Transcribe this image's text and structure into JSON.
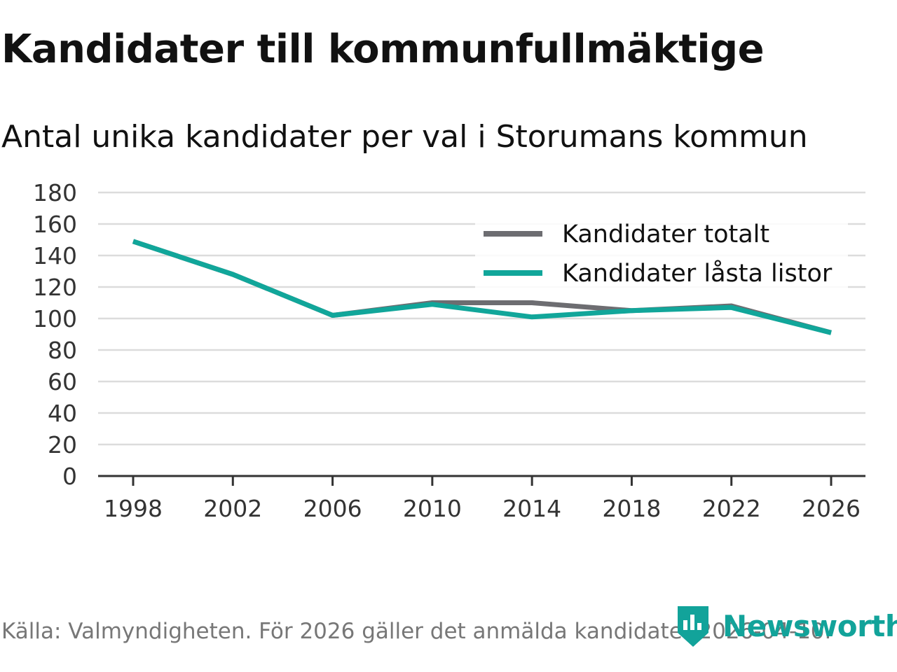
{
  "title": "Kandidater till kommunfullmäktige",
  "subtitle": "Antal unika kandidater per val i Storumans kommun",
  "footer": "Källa: Valmyndigheten. För 2026 gäller det anmälda kandidater 2026-04-10.",
  "brand": "Newsworthy",
  "colors": {
    "total": "#6d6d71",
    "locked": "#11a69a",
    "grid": "#dcdcdc",
    "axis": "#333333",
    "brand": "#12a39a"
  },
  "chart_data": {
    "type": "line",
    "title": "Kandidater till kommunfullmäktige",
    "subtitle": "Antal unika kandidater per val i Storumans kommun",
    "xlabel": "",
    "ylabel": "",
    "x": [
      "1998",
      "2002",
      "2006",
      "2010",
      "2014",
      "2018",
      "2022",
      "2026"
    ],
    "ylim": [
      0,
      180
    ],
    "yticks": [
      0,
      20,
      40,
      60,
      80,
      100,
      120,
      140,
      160,
      180
    ],
    "grid": true,
    "legend_position": "top-right",
    "series": [
      {
        "name": "Kandidater totalt",
        "color": "#6d6d71",
        "values": [
          149,
          128,
          102,
          110,
          110,
          105,
          108,
          91
        ]
      },
      {
        "name": "Kandidater låsta listor",
        "color": "#11a69a",
        "values": [
          149,
          128,
          102,
          109,
          101,
          105,
          107,
          91
        ]
      }
    ]
  }
}
